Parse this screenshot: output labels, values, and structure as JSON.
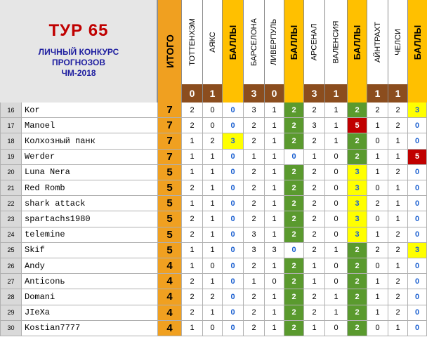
{
  "title": {
    "tour": "ТУР 65",
    "line1": "ЛИЧНЫЙ КОНКУРС",
    "line2": "ПРОГНОЗОВ",
    "line3": "ЧМ-2018"
  },
  "total_label": "ИТОГО",
  "headers": [
    "ТОТТЕНХЭМ",
    "АЯКС",
    "БАЛЛЫ",
    "БАРСЕЛОНА",
    "ЛИВЕРПУЛЬ",
    "БАЛЛЫ",
    "АРСЕНАЛ",
    "ВАЛЕНСИЯ",
    "БАЛЛЫ",
    "АЙНТРАХТ",
    "ЧЕЛСИ",
    "БАЛЛЫ"
  ],
  "results": [
    "0",
    "1",
    "",
    "3",
    "0",
    "",
    "3",
    "1",
    "",
    "1",
    "1",
    ""
  ],
  "colors": {
    "total": "#f0a020",
    "score_header": "#ffc000",
    "result": "#8b4d1e",
    "pts2": "#5a9a2e",
    "pts3": "#ffff00",
    "pts5": "#c00000",
    "pts0_text": "#1a5fd0"
  },
  "rows": [
    {
      "num": "16",
      "name": "Kor",
      "total": "7",
      "cells": [
        "2",
        "0",
        "0",
        "3",
        "1",
        "2",
        "2",
        "1",
        "2",
        "2",
        "2",
        "3"
      ]
    },
    {
      "num": "17",
      "name": "Manoel",
      "total": "7",
      "cells": [
        "2",
        "0",
        "0",
        "2",
        "1",
        "2",
        "3",
        "1",
        "5",
        "1",
        "2",
        "0"
      ]
    },
    {
      "num": "18",
      "name": "Колхозный панк",
      "total": "7",
      "cells": [
        "1",
        "2",
        "3",
        "2",
        "1",
        "2",
        "2",
        "1",
        "2",
        "0",
        "1",
        "0"
      ]
    },
    {
      "num": "19",
      "name": "Werder",
      "total": "7",
      "cells": [
        "1",
        "1",
        "0",
        "1",
        "1",
        "0",
        "1",
        "0",
        "2",
        "1",
        "1",
        "5"
      ]
    },
    {
      "num": "20",
      "name": "Luna Nera",
      "total": "5",
      "cells": [
        "1",
        "1",
        "0",
        "2",
        "1",
        "2",
        "2",
        "0",
        "3",
        "1",
        "2",
        "0"
      ]
    },
    {
      "num": "21",
      "name": "Red Romb",
      "total": "5",
      "cells": [
        "2",
        "1",
        "0",
        "2",
        "1",
        "2",
        "2",
        "0",
        "3",
        "0",
        "1",
        "0"
      ]
    },
    {
      "num": "22",
      "name": "shark attack",
      "total": "5",
      "cells": [
        "1",
        "1",
        "0",
        "2",
        "1",
        "2",
        "2",
        "0",
        "3",
        "2",
        "1",
        "0"
      ]
    },
    {
      "num": "23",
      "name": "spartachs1980",
      "total": "5",
      "cells": [
        "2",
        "1",
        "0",
        "2",
        "1",
        "2",
        "2",
        "0",
        "3",
        "0",
        "1",
        "0"
      ]
    },
    {
      "num": "24",
      "name": "telemine",
      "total": "5",
      "cells": [
        "2",
        "1",
        "0",
        "3",
        "1",
        "2",
        "2",
        "0",
        "3",
        "1",
        "2",
        "0"
      ]
    },
    {
      "num": "25",
      "name": "Skif",
      "total": "5",
      "cells": [
        "1",
        "1",
        "0",
        "3",
        "3",
        "0",
        "2",
        "1",
        "2",
        "2",
        "2",
        "3"
      ]
    },
    {
      "num": "26",
      "name": "Andy",
      "total": "4",
      "cells": [
        "1",
        "0",
        "0",
        "2",
        "1",
        "2",
        "1",
        "0",
        "2",
        "0",
        "1",
        "0"
      ]
    },
    {
      "num": "27",
      "name": "Anticonь",
      "total": "4",
      "cells": [
        "2",
        "1",
        "0",
        "1",
        "0",
        "2",
        "1",
        "0",
        "2",
        "1",
        "2",
        "0"
      ]
    },
    {
      "num": "28",
      "name": "Domani",
      "total": "4",
      "cells": [
        "2",
        "2",
        "0",
        "2",
        "1",
        "2",
        "2",
        "1",
        "2",
        "1",
        "2",
        "0"
      ]
    },
    {
      "num": "29",
      "name": "JIeXa",
      "total": "4",
      "cells": [
        "2",
        "1",
        "0",
        "2",
        "1",
        "2",
        "2",
        "1",
        "2",
        "1",
        "2",
        "0"
      ]
    },
    {
      "num": "30",
      "name": "Kostian7777",
      "total": "4",
      "cells": [
        "1",
        "0",
        "0",
        "2",
        "1",
        "2",
        "1",
        "0",
        "2",
        "0",
        "1",
        "0"
      ]
    }
  ]
}
